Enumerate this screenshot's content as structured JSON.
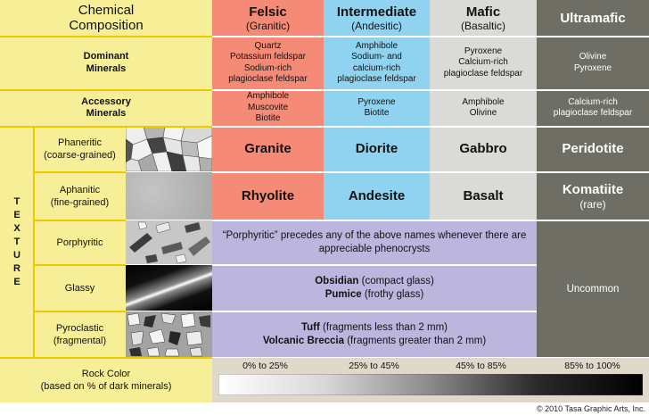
{
  "header": {
    "corner": "Chemical\nComposition",
    "felsic": {
      "name": "Felsic",
      "sub": "(Granitic)"
    },
    "intermediate": {
      "name": "Intermediate",
      "sub": "(Andesitic)"
    },
    "mafic": {
      "name": "Mafic",
      "sub": "(Basaltic)"
    },
    "ultramafic": {
      "name": "Ultramafic"
    }
  },
  "dominant": {
    "label": "Dominant\nMinerals",
    "felsic": "Quartz\nPotassium feldspar\nSodium-rich\nplagioclase feldspar",
    "intermediate": "Amphibole\nSodium- and\ncalcium-rich\nplagioclase feldspar",
    "mafic": "Pyroxene\nCalcium-rich\nplagioclase feldspar",
    "ultramafic": "Olivine\nPyroxene"
  },
  "accessory": {
    "label": "Accessory\nMinerals",
    "felsic": "Amphibole\nMuscovite\nBiotite",
    "intermediate": "Pyroxene\nBiotite",
    "mafic": "Amphibole\nOlivine",
    "ultramafic": "Calcium-rich\nplagioclase feldspar"
  },
  "texture_label": "TEXTURE",
  "textures": {
    "phaneritic": "Phaneritic\n(coarse-grained)",
    "aphanitic": "Aphanitic\n(fine-grained)",
    "porphyritic": "Porphyritic",
    "glassy": "Glassy",
    "pyroclastic": "Pyroclastic\n(fragmental)"
  },
  "rocks": {
    "granite": "Granite",
    "diorite": "Diorite",
    "gabbro": "Gabbro",
    "peridotite": "Peridotite",
    "rhyolite": "Rhyolite",
    "andesite": "Andesite",
    "basalt": "Basalt",
    "komatiite": "Komatiite",
    "komatiite_note": "(rare)"
  },
  "porphyritic_note": "“Porphyritic” precedes any of the above names whenever there are\nappreciable phenocrysts",
  "glassy": {
    "obsidian": "Obsidian",
    "obsidian_note": " (compact glass)",
    "pumice": "Pumice",
    "pumice_note": " (frothy glass)"
  },
  "pyroclastic": {
    "tuff": "Tuff",
    "tuff_note": " (fragments less than 2 mm)",
    "breccia": "Volcanic Breccia",
    "breccia_note": " (fragments greater than 2 mm)"
  },
  "uncommon": "Uncommon",
  "rock_color": {
    "label": "Rock Color\n(based on % of dark minerals)",
    "ranges": [
      "0% to 25%",
      "25% to 45%",
      "45% to 85%",
      "85% to 100%"
    ]
  },
  "copyright": "© 2010 Tasa Graphic Arts, Inc.",
  "colors": {
    "felsic": "#f58b77",
    "intermediate": "#8fd3f0",
    "mafic": "#dadad6",
    "ultramafic": "#6e6e64",
    "label_bg": "#f7ef97",
    "texture_note_bg": "#bcb6de"
  }
}
